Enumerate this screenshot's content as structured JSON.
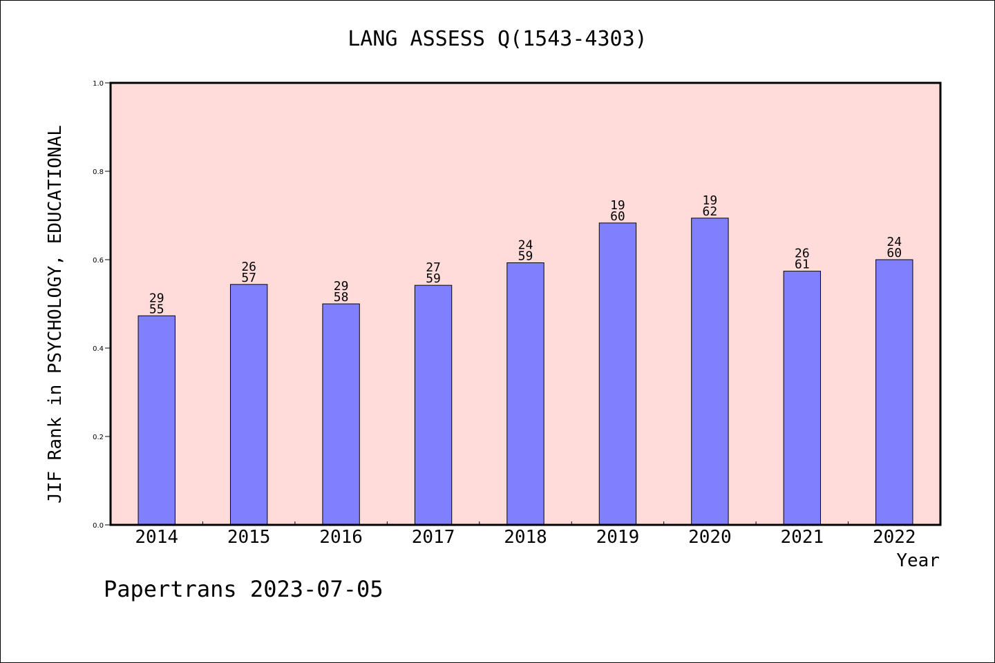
{
  "chart_data": {
    "type": "bar",
    "title": "LANG ASSESS Q(1543-4303)",
    "xlabel": "Year",
    "ylabel": "JIF Rank in PSYCHOLOGY, EDUCATIONAL",
    "ylim": [
      0,
      1.0
    ],
    "yticks": [
      "0.0",
      "0.2",
      "0.4",
      "0.6",
      "0.8",
      "1.0"
    ],
    "grid": false,
    "categories": [
      "2014",
      "2015",
      "2016",
      "2017",
      "2018",
      "2019",
      "2020",
      "2021",
      "2022"
    ],
    "values": [
      0.473,
      0.544,
      0.5,
      0.542,
      0.593,
      0.683,
      0.694,
      0.574,
      0.6
    ],
    "labels": [
      [
        "29",
        "55"
      ],
      [
        "26",
        "57"
      ],
      [
        "29",
        "58"
      ],
      [
        "27",
        "59"
      ],
      [
        "24",
        "59"
      ],
      [
        "19",
        "60"
      ],
      [
        "19",
        "62"
      ],
      [
        "26",
        "61"
      ],
      [
        "24",
        "60"
      ]
    ],
    "colors": {
      "bar": "#8080ff",
      "plot_background": "#ffdbd9",
      "axis": "#000000"
    }
  },
  "footer": "Papertrans 2023-07-05"
}
